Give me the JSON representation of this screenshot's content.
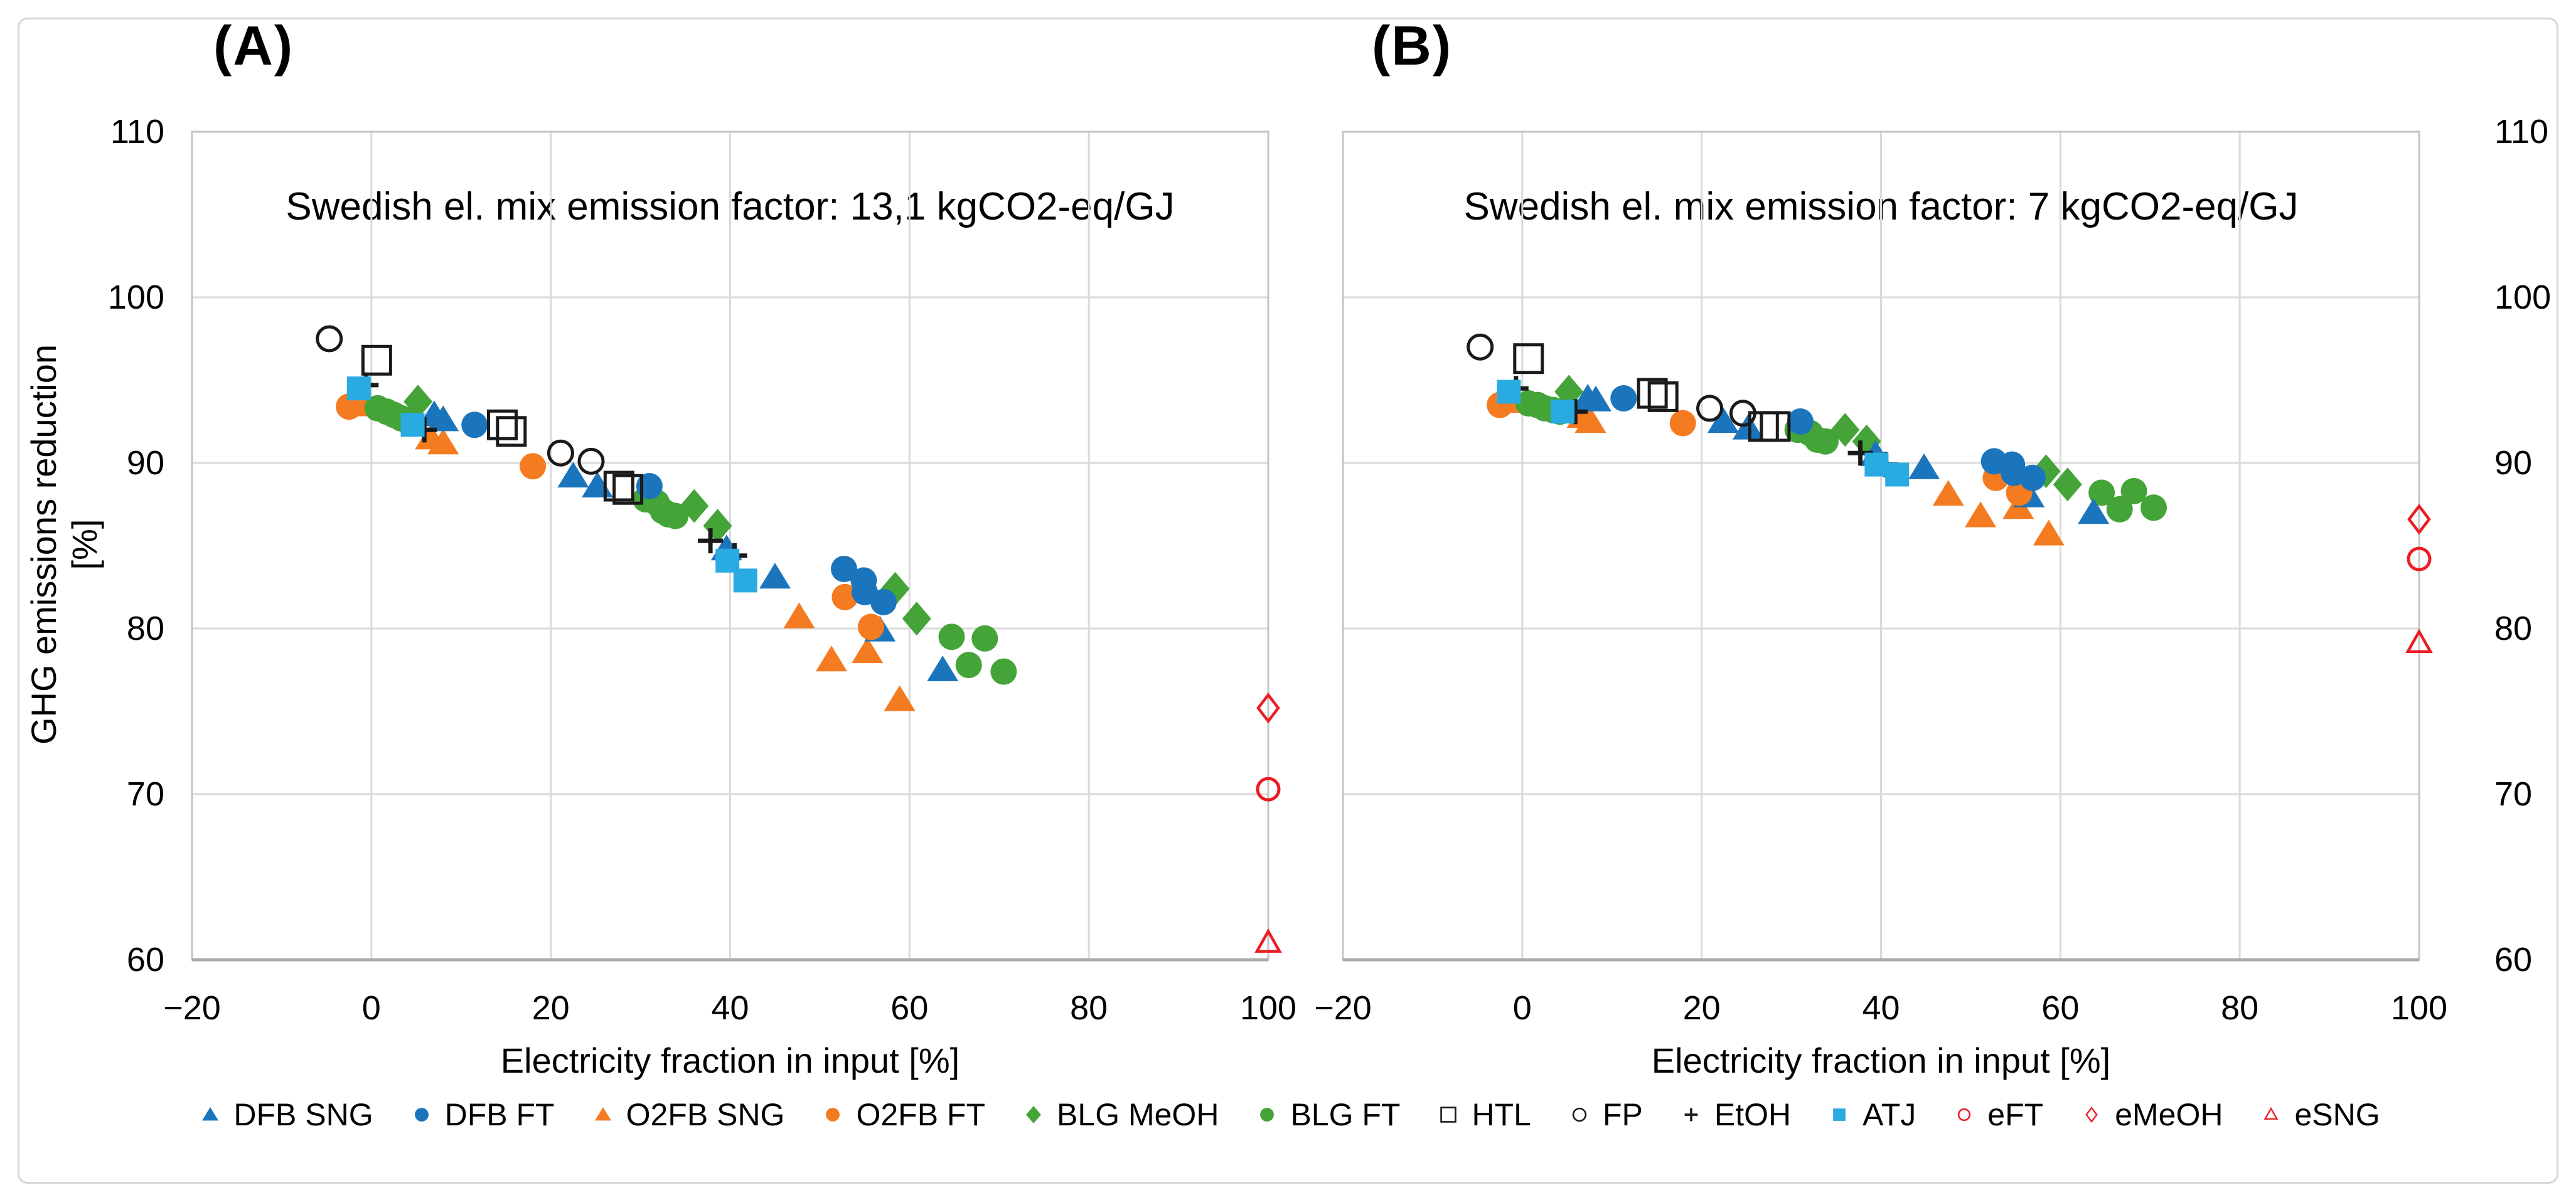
{
  "figure": {
    "y_axis_title": "GHG emissions reduction [%]",
    "x_axis_title": "Electricity fraction in input [%]"
  },
  "colors": {
    "dfb_blue": "#1b75bc",
    "atj_light_blue": "#29abe2",
    "o2fb_orange": "#f47b20",
    "blg_green": "#44a438",
    "marker_black": "#1a1a1a",
    "e_red": "#ec1c24",
    "gridline": "#dadada",
    "plot_frame": "#c4c4c4",
    "bottom_axis": "#ababab"
  },
  "chart_data": [
    {
      "type": "scatter",
      "panel_label": "(A)",
      "subtitle": "Swedish el. mix emission factor: 13,1 kgCO2-eq/GJ",
      "xlabel": "Electricity fraction in input [%]",
      "ylabel": "GHG emissions reduction [%]",
      "xlim": [
        -20,
        100
      ],
      "ylim": [
        60,
        110
      ],
      "xticks": [
        -20,
        0,
        20,
        40,
        60,
        80,
        100
      ],
      "xtick_labels": [
        "−20",
        "0",
        "20",
        "40",
        "60",
        "80",
        "100"
      ],
      "yticks": [
        110,
        100,
        90,
        80,
        70,
        60
      ],
      "ytick_labels": [
        "110",
        "100",
        "90",
        "80",
        "70",
        "60"
      ],
      "grid": true,
      "series": [
        {
          "name": "DFB SNG",
          "symbol": "triangle",
          "color": "#1b75bc",
          "filled": true,
          "z": 4,
          "points": [
            [
              7.0,
              92.9
            ],
            [
              8.0,
              92.6
            ],
            [
              22.5,
              89.2
            ],
            [
              25.2,
              88.6
            ],
            [
              39.6,
              84.8
            ],
            [
              45.0,
              83.1
            ],
            [
              56.7,
              79.9
            ],
            [
              63.7,
              77.5
            ]
          ]
        },
        {
          "name": "DFB FT",
          "symbol": "circle",
          "color": "#1b75bc",
          "filled": true,
          "z": 6,
          "points": [
            [
              11.5,
              92.3
            ],
            [
              31.0,
              88.6
            ],
            [
              52.7,
              83.6
            ],
            [
              54.9,
              82.9
            ],
            [
              55.0,
              82.2
            ],
            [
              57.1,
              81.6
            ]
          ]
        },
        {
          "name": "O2FB SNG",
          "symbol": "triangle",
          "color": "#f47b20",
          "filled": true,
          "z": 1,
          "points": [
            [
              -0.5,
              93.5
            ],
            [
              6.6,
              91.5
            ],
            [
              8.0,
              91.2
            ],
            [
              47.7,
              80.7
            ],
            [
              51.3,
              78.1
            ],
            [
              55.3,
              78.6
            ],
            [
              58.9,
              75.7
            ]
          ]
        },
        {
          "name": "O2FB FT",
          "symbol": "circle",
          "color": "#f47b20",
          "filled": true,
          "z": 5,
          "points": [
            [
              -2.5,
              93.4
            ],
            [
              18.0,
              89.8
            ],
            [
              52.8,
              81.9
            ],
            [
              55.7,
              80.1
            ]
          ]
        },
        {
          "name": "BLG MeOH",
          "symbol": "diamond",
          "color": "#44a438",
          "filled": true,
          "z": 2,
          "points": [
            [
              5.2,
              93.7
            ],
            [
              36.0,
              87.4
            ],
            [
              38.6,
              86.2
            ],
            [
              58.4,
              82.4
            ],
            [
              60.8,
              80.6
            ]
          ]
        },
        {
          "name": "BLG FT",
          "symbol": "circle",
          "color": "#44a438",
          "filled": true,
          "z": 3,
          "points": [
            [
              0.7,
              93.3
            ],
            [
              1.7,
              93.1
            ],
            [
              2.5,
              92.9
            ],
            [
              3.3,
              92.7
            ],
            [
              4.1,
              92.5
            ],
            [
              30.6,
              87.8
            ],
            [
              31.8,
              87.6
            ],
            [
              32.5,
              87.1
            ],
            [
              33.1,
              86.9
            ],
            [
              33.9,
              86.8
            ],
            [
              64.7,
              79.5
            ],
            [
              66.6,
              77.8
            ],
            [
              68.4,
              79.4
            ],
            [
              70.5,
              77.4
            ]
          ]
        },
        {
          "name": "HTL",
          "symbol": "square-open",
          "color": "#1a1a1a",
          "filled": false,
          "z": 7,
          "points": [
            [
              0.6,
              96.2
            ],
            [
              14.6,
              92.3
            ],
            [
              15.6,
              91.9
            ],
            [
              27.6,
              88.6
            ],
            [
              28.6,
              88.4
            ]
          ]
        },
        {
          "name": "FP",
          "symbol": "circle-open",
          "color": "#1a1a1a",
          "filled": false,
          "z": 8,
          "points": [
            [
              -4.7,
              97.5
            ],
            [
              21.1,
              90.6
            ],
            [
              24.5,
              90.1
            ]
          ]
        },
        {
          "name": "EtOH",
          "symbol": "plus",
          "color": "#1a1a1a",
          "filled": false,
          "z": 9,
          "points": [
            [
              -0.6,
              94.7
            ],
            [
              5.9,
              92.0
            ],
            [
              37.8,
              85.3
            ],
            [
              40.5,
              84.4
            ]
          ]
        },
        {
          "name": "ATJ",
          "symbol": "square",
          "color": "#29abe2",
          "filled": true,
          "z": 10,
          "points": [
            [
              -1.4,
              94.5
            ],
            [
              4.6,
              92.3
            ],
            [
              39.7,
              84.1
            ],
            [
              41.7,
              82.9
            ]
          ]
        },
        {
          "name": "eFT",
          "symbol": "circle-open-small",
          "color": "#ec1c24",
          "filled": false,
          "z": 11,
          "points": [
            [
              100,
              70.3
            ]
          ]
        },
        {
          "name": "eMeOH",
          "symbol": "diamond-open",
          "color": "#ec1c24",
          "filled": false,
          "z": 12,
          "points": [
            [
              100,
              75.2
            ]
          ]
        },
        {
          "name": "eSNG",
          "symbol": "triangle-open",
          "color": "#ec1c24",
          "filled": false,
          "z": 13,
          "points": [
            [
              100,
              61.0
            ]
          ]
        }
      ]
    },
    {
      "type": "scatter",
      "panel_label": "(B)",
      "subtitle": "Swedish el. mix emission factor: 7 kgCO2-eq/GJ",
      "xlabel": "Electricity fraction in input [%]",
      "ylabel": "GHG emissions reduction [%]",
      "xlim": [
        -20,
        100
      ],
      "ylim": [
        60,
        110
      ],
      "xticks": [
        -20,
        0,
        20,
        40,
        60,
        80,
        100
      ],
      "xtick_labels": [
        "−20",
        "0",
        "20",
        "40",
        "60",
        "80",
        "100"
      ],
      "yticks": [
        110,
        100,
        90,
        80,
        70,
        60
      ],
      "ytick_labels": [
        "110",
        "100",
        "90",
        "80",
        "70",
        "60"
      ],
      "grid": true,
      "series": [
        {
          "name": "DFB SNG",
          "symbol": "triangle",
          "color": "#1b75bc",
          "filled": true,
          "z": 4,
          "points": [
            [
              7.3,
              93.9
            ],
            [
              8.2,
              93.8
            ],
            [
              22.4,
              92.5
            ],
            [
              25.2,
              92.1
            ],
            [
              39.4,
              90.5
            ],
            [
              44.8,
              89.7
            ],
            [
              56.5,
              88.0
            ],
            [
              63.7,
              87.0
            ]
          ]
        },
        {
          "name": "DFB FT",
          "symbol": "circle",
          "color": "#1b75bc",
          "filled": true,
          "z": 6,
          "points": [
            [
              11.3,
              93.9
            ],
            [
              31.0,
              92.5
            ],
            [
              52.6,
              90.1
            ],
            [
              54.6,
              89.9
            ],
            [
              54.8,
              89.4
            ],
            [
              56.9,
              89.1
            ]
          ]
        },
        {
          "name": "O2FB SNG",
          "symbol": "triangle",
          "color": "#f47b20",
          "filled": true,
          "z": 1,
          "points": [
            [
              -0.6,
              93.7
            ],
            [
              6.7,
              92.8
            ],
            [
              7.6,
              92.5
            ],
            [
              47.5,
              88.1
            ],
            [
              51.1,
              86.8
            ],
            [
              55.3,
              87.3
            ],
            [
              58.7,
              85.7
            ]
          ]
        },
        {
          "name": "O2FB FT",
          "symbol": "circle",
          "color": "#f47b20",
          "filled": true,
          "z": 5,
          "points": [
            [
              -2.5,
              93.5
            ],
            [
              17.9,
              92.4
            ],
            [
              52.8,
              89.1
            ],
            [
              55.4,
              88.2
            ]
          ]
        },
        {
          "name": "BLG MeOH",
          "symbol": "diamond",
          "color": "#44a438",
          "filled": true,
          "z": 2,
          "points": [
            [
              5.2,
              94.3
            ],
            [
              36.0,
              92.0
            ],
            [
              38.4,
              91.3
            ],
            [
              58.4,
              89.5
            ],
            [
              60.8,
              88.7
            ]
          ]
        },
        {
          "name": "BLG FT",
          "symbol": "circle",
          "color": "#44a438",
          "filled": true,
          "z": 3,
          "points": [
            [
              0.7,
              93.6
            ],
            [
              1.7,
              93.5
            ],
            [
              2.5,
              93.3
            ],
            [
              3.4,
              93.2
            ],
            [
              4.2,
              93.1
            ],
            [
              30.7,
              92.0
            ],
            [
              32.1,
              91.8
            ],
            [
              32.9,
              91.4
            ],
            [
              33.8,
              91.3
            ],
            [
              64.6,
              88.2
            ],
            [
              66.6,
              87.2
            ],
            [
              68.2,
              88.3
            ],
            [
              70.4,
              87.3
            ]
          ]
        },
        {
          "name": "HTL",
          "symbol": "square-open",
          "color": "#1a1a1a",
          "filled": false,
          "z": 7,
          "points": [
            [
              0.7,
              96.3
            ],
            [
              14.5,
              94.2
            ],
            [
              15.7,
              94.0
            ],
            [
              26.9,
              92.2
            ],
            [
              28.2,
              92.2
            ]
          ]
        },
        {
          "name": "FP",
          "symbol": "circle-open",
          "color": "#1a1a1a",
          "filled": false,
          "z": 8,
          "points": [
            [
              -4.7,
              97.0
            ],
            [
              20.9,
              93.3
            ],
            [
              24.6,
              93.0
            ]
          ]
        },
        {
          "name": "EtOH",
          "symbol": "plus",
          "color": "#1a1a1a",
          "filled": false,
          "z": 9,
          "points": [
            [
              -0.7,
              94.5
            ],
            [
              5.9,
              93.1
            ],
            [
              37.7,
              90.6
            ],
            [
              40.5,
              89.9
            ]
          ]
        },
        {
          "name": "ATJ",
          "symbol": "square",
          "color": "#29abe2",
          "filled": true,
          "z": 10,
          "points": [
            [
              -1.5,
              94.3
            ],
            [
              4.5,
              93.1
            ],
            [
              39.5,
              89.9
            ],
            [
              41.8,
              89.3
            ]
          ]
        },
        {
          "name": "eFT",
          "symbol": "circle-open-small",
          "color": "#ec1c24",
          "filled": false,
          "z": 11,
          "points": [
            [
              100,
              84.2
            ]
          ]
        },
        {
          "name": "eMeOH",
          "symbol": "diamond-open",
          "color": "#ec1c24",
          "filled": false,
          "z": 12,
          "points": [
            [
              100,
              86.6
            ]
          ]
        },
        {
          "name": "eSNG",
          "symbol": "triangle-open",
          "color": "#ec1c24",
          "filled": false,
          "z": 13,
          "points": [
            [
              100,
              79.1
            ]
          ]
        }
      ]
    }
  ],
  "legend": {
    "labels": [
      "DFB SNG",
      "DFB FT",
      "O2FB SNG",
      "O2FB FT",
      "BLG MeOH",
      "BLG FT",
      "HTL",
      "FP",
      "EtOH",
      "ATJ",
      "eFT",
      "eMeOH",
      "eSNG"
    ]
  }
}
